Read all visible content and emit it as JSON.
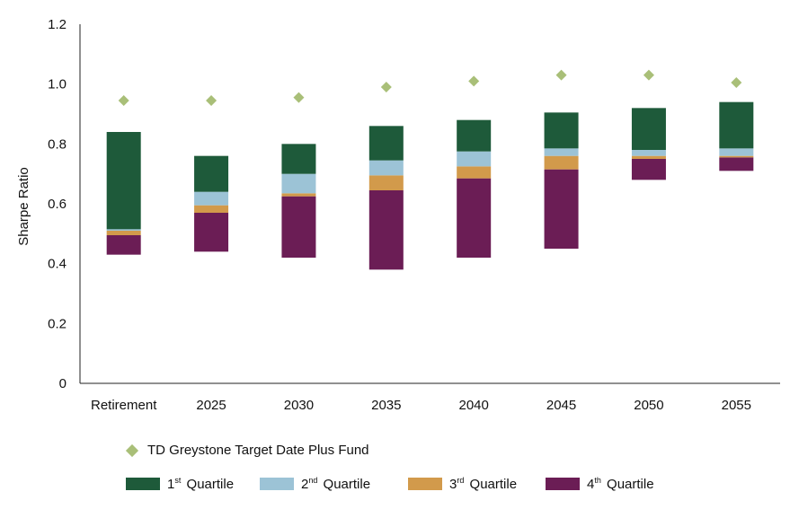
{
  "chart_data": {
    "type": "bar",
    "ylabel": "Sharpe Ratio",
    "ylim": [
      0,
      1.2
    ],
    "y_ticks": [
      "0",
      "0.2",
      "0.4",
      "0.6",
      "0.8",
      "1.0",
      "1.2"
    ],
    "y_tick_values": [
      0,
      0.2,
      0.4,
      0.6,
      0.8,
      1.0,
      1.2
    ],
    "categories": [
      "Retirement",
      "2025",
      "2030",
      "2035",
      "2040",
      "2045",
      "2050",
      "2055"
    ],
    "quartile_boundaries": {
      "min": [
        0.43,
        0.44,
        0.42,
        0.38,
        0.42,
        0.45,
        0.68,
        0.71
      ],
      "q4_top": [
        0.495,
        0.57,
        0.625,
        0.645,
        0.685,
        0.715,
        0.75,
        0.755
      ],
      "q3_top": [
        0.51,
        0.595,
        0.635,
        0.695,
        0.725,
        0.76,
        0.76,
        0.76
      ],
      "q2_top": [
        0.515,
        0.64,
        0.7,
        0.745,
        0.775,
        0.785,
        0.78,
        0.785
      ],
      "max": [
        0.84,
        0.76,
        0.8,
        0.86,
        0.88,
        0.905,
        0.92,
        0.94
      ]
    },
    "series": [
      {
        "name": "TD Greystone Target Date Plus Fund",
        "kind": "diamond",
        "values": [
          0.945,
          0.945,
          0.955,
          0.99,
          1.01,
          1.03,
          1.03,
          1.005
        ]
      },
      {
        "name_pre": "1",
        "name_sup": "st",
        "name_post": " Quartile",
        "kind": "bar"
      },
      {
        "name_pre": "2",
        "name_sup": "nd",
        "name_post": " Quartile",
        "kind": "bar"
      },
      {
        "name_pre": "3",
        "name_sup": "rd",
        "name_post": " Quartile",
        "kind": "bar"
      },
      {
        "name_pre": "4",
        "name_sup": "th",
        "name_post": " Quartile",
        "kind": "bar"
      }
    ],
    "colors": {
      "q1": "#1e5a3a",
      "q2": "#9cc3d6",
      "q3": "#d29a4b",
      "q4": "#6b1d55",
      "fund": "#a9bf78",
      "axis": "#222222"
    },
    "legend_position": "bottom",
    "grid": false
  }
}
